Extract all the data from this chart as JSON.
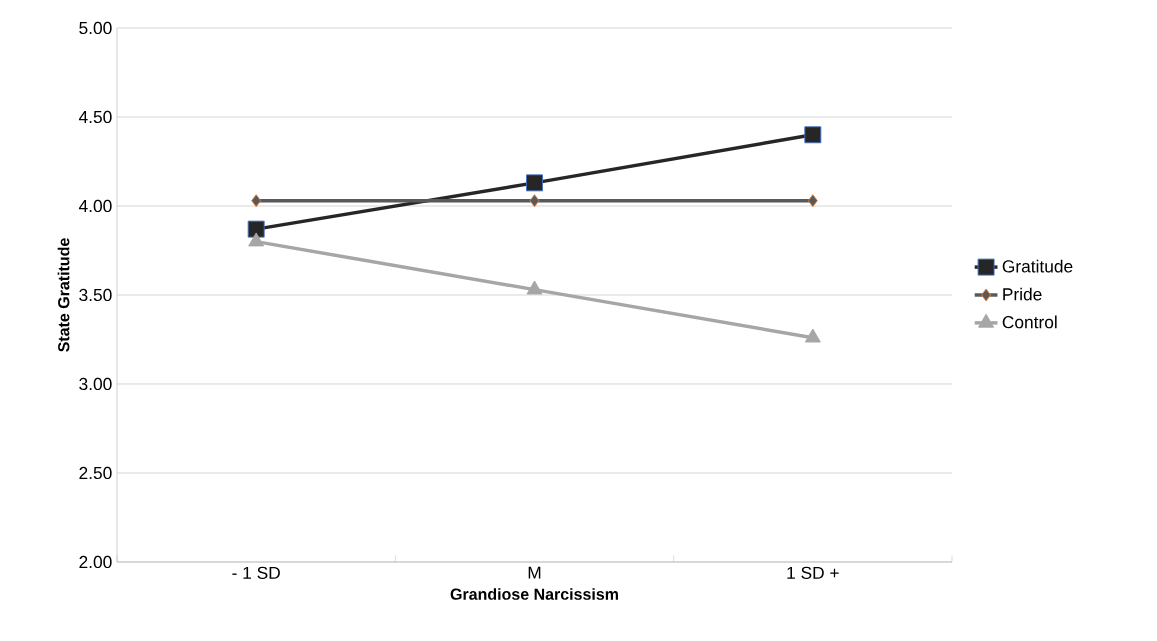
{
  "chart_data": {
    "type": "line",
    "xlabel": "Grandiose Narcissism",
    "ylabel": "State Gratitude",
    "categories": [
      "- 1 SD",
      "M",
      "1 SD +"
    ],
    "series": [
      {
        "name": "Gratitude",
        "color": "#262626",
        "values": [
          3.87,
          4.13,
          4.4
        ],
        "marker": "square"
      },
      {
        "name": "Pride",
        "color": "#595959",
        "values": [
          4.03,
          4.03,
          4.03
        ],
        "marker": "diamond"
      },
      {
        "name": "Control",
        "color": "#a6a6a6",
        "values": [
          3.8,
          3.53,
          3.26
        ],
        "marker": "triangle"
      }
    ],
    "ylim": [
      2,
      5
    ],
    "yticks": [
      {
        "value": 2,
        "label": "2.00"
      },
      {
        "value": 2.5,
        "label": "2.50"
      },
      {
        "value": 3,
        "label": "3.00"
      },
      {
        "value": 3.5,
        "label": "3.50"
      },
      {
        "value": 4,
        "label": "4.00"
      },
      {
        "value": 4.5,
        "label": "4.50"
      },
      {
        "value": 5,
        "label": "5.00"
      }
    ],
    "grid": "y",
    "legend": "right",
    "line_style": "solid"
  }
}
